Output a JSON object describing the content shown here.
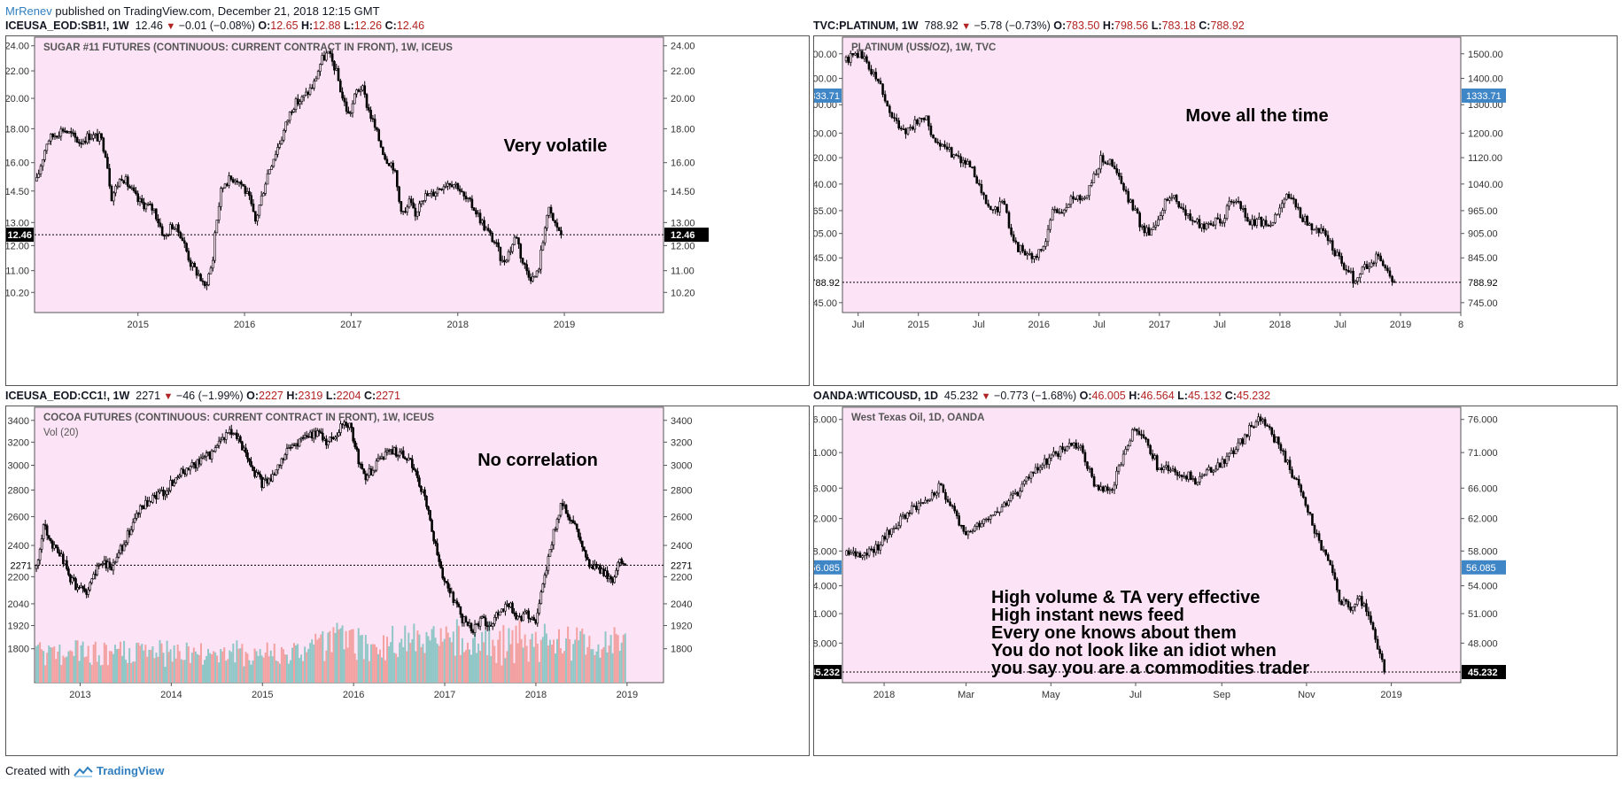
{
  "header": {
    "author": "MrRenev",
    "published_text": "published on TradingView.com, December 21, 2018 12:15 GMT"
  },
  "footer": {
    "created_with": "Created with",
    "brand": "TradingView"
  },
  "colors": {
    "plot_bg": "#fce4f6",
    "badge_blue": "#3f86c6",
    "badge_black": "#000000",
    "vol_up": "#8fc6c6",
    "vol_down": "#f2a0a0",
    "down_red": "#b22222"
  },
  "charts": [
    {
      "symbol": "ICEUSA_EOD:SB1!, 1W",
      "price": "12.46",
      "change": "−0.01 (−0.08%)",
      "o": "12.65",
      "h": "12.88",
      "l": "12.26",
      "c": "12.46",
      "inner_title": "SUGAR #11 FUTURES (CONTINUOUS: CURRENT CONTRACT IN FRONT), 1W, ICEUS",
      "annotation": [
        "Very volatile"
      ],
      "last_label": "12.46",
      "badge_style": "black",
      "left_axis": true
    },
    {
      "symbol": "TVC:PLATINUM, 1W",
      "price": "788.92",
      "change": "−5.78 (−0.73%)",
      "o": "783.50",
      "h": "798.56",
      "l": "783.18",
      "c": "788.92",
      "inner_title": "PLATINUM (US$/OZ), 1W, TVC",
      "annotation": [
        "Move all the time"
      ],
      "last_label": "788.92",
      "ref_label": "1333.71",
      "badge_style": "plain",
      "left_axis": true
    },
    {
      "symbol": "ICEUSA_EOD:CC1!, 1W",
      "price": "2271",
      "change": "−46 (−1.99%)",
      "o": "2227",
      "h": "2319",
      "l": "2204",
      "c": "2271",
      "inner_title": "COCOA FUTURES (CONTINUOUS: CURRENT CONTRACT IN FRONT), 1W, ICEUS",
      "sub_title": "Vol (20)",
      "annotation": [
        "No correlation"
      ],
      "last_label": "2271",
      "badge_style": "plain",
      "left_axis": true
    },
    {
      "symbol": "OANDA:WTICOUSD, 1D",
      "price": "45.232",
      "change": "−0.773 (−1.68%)",
      "o": "46.005",
      "h": "46.564",
      "l": "45.132",
      "c": "45.232",
      "inner_title": "West Texas Oil, 1D, OANDA",
      "annotation": [
        "High volume & TA very effective",
        "High instant news feed",
        "Every one knows about them",
        "You do not look like an idiot when",
        "you say you are a commodities trader"
      ],
      "last_label": "45.232",
      "ref_label": "56.085",
      "badge_style": "black",
      "left_axis": true
    }
  ],
  "chart_data": [
    {
      "type": "candlestick",
      "title": "SUGAR #11 FUTURES (CONTINUOUS: CURRENT CONTRACT IN FRONT), 1W, ICEUS",
      "x_ticks": [
        "2015",
        "2016",
        "2017",
        "2018",
        "2019"
      ],
      "x_tick_pos": [
        2015.0,
        2016.0,
        2017.0,
        2018.0,
        2019.0
      ],
      "x_range": [
        2014.03,
        2019.93
      ],
      "y_ticks": [
        "24.00",
        "22.00",
        "20.00",
        "18.00",
        "16.00",
        "14.50",
        "13.00",
        "12.00",
        "11.00",
        "10.20"
      ],
      "y_range": [
        9.6,
        24.5
      ],
      "y_scale": "log",
      "last_value": 12.46,
      "path": [
        [
          2014.05,
          15.0
        ],
        [
          2014.15,
          17.3
        ],
        [
          2014.3,
          18.0
        ],
        [
          2014.45,
          17.2
        ],
        [
          2014.55,
          17.6
        ],
        [
          2014.65,
          17.4
        ],
        [
          2014.7,
          16.5
        ],
        [
          2014.75,
          14.2
        ],
        [
          2014.85,
          15.3
        ],
        [
          2015.0,
          14.0
        ],
        [
          2015.15,
          13.6
        ],
        [
          2015.25,
          12.3
        ],
        [
          2015.32,
          12.9
        ],
        [
          2015.4,
          12.5
        ],
        [
          2015.5,
          11.2
        ],
        [
          2015.58,
          10.8
        ],
        [
          2015.62,
          10.3
        ],
        [
          2015.7,
          11.3
        ],
        [
          2015.72,
          12.5
        ],
        [
          2015.78,
          14.5
        ],
        [
          2015.82,
          15.0
        ],
        [
          2015.92,
          15.2
        ],
        [
          2015.98,
          14.8
        ],
        [
          2016.05,
          14.0
        ],
        [
          2016.1,
          13.0
        ],
        [
          2016.15,
          14.0
        ],
        [
          2016.22,
          15.5
        ],
        [
          2016.35,
          17.5
        ],
        [
          2016.45,
          19.5
        ],
        [
          2016.55,
          20.0
        ],
        [
          2016.65,
          21.0
        ],
        [
          2016.72,
          22.8
        ],
        [
          2016.78,
          23.4
        ],
        [
          2016.85,
          22.2
        ],
        [
          2016.92,
          20.0
        ],
        [
          2016.98,
          18.8
        ],
        [
          2017.05,
          20.5
        ],
        [
          2017.1,
          20.8
        ],
        [
          2017.15,
          19.5
        ],
        [
          2017.25,
          17.5
        ],
        [
          2017.32,
          16.3
        ],
        [
          2017.4,
          15.8
        ],
        [
          2017.45,
          14.0
        ],
        [
          2017.5,
          13.3
        ],
        [
          2017.55,
          14.0
        ],
        [
          2017.6,
          13.2
        ],
        [
          2017.65,
          14.2
        ],
        [
          2017.75,
          14.3
        ],
        [
          2017.85,
          14.8
        ],
        [
          2017.92,
          15.0
        ],
        [
          2018.0,
          14.8
        ],
        [
          2018.05,
          14.2
        ],
        [
          2018.15,
          13.7
        ],
        [
          2018.25,
          12.8
        ],
        [
          2018.35,
          12.1
        ],
        [
          2018.42,
          11.3
        ],
        [
          2018.5,
          11.9
        ],
        [
          2018.55,
          12.5
        ],
        [
          2018.6,
          11.4
        ],
        [
          2018.65,
          11.0
        ],
        [
          2018.7,
          10.7
        ],
        [
          2018.75,
          10.9
        ],
        [
          2018.8,
          12.2
        ],
        [
          2018.82,
          13.0
        ],
        [
          2018.85,
          13.6
        ],
        [
          2018.9,
          13.0
        ],
        [
          2018.95,
          12.7
        ],
        [
          2018.97,
          12.46
        ]
      ]
    },
    {
      "type": "candlestick",
      "title": "PLATINUM (US$/OZ), 1W, TVC",
      "x_ticks": [
        "Jul",
        "2015",
        "Jul",
        "2016",
        "Jul",
        "2017",
        "Jul",
        "2018",
        "Jul",
        "2019",
        "8"
      ],
      "x_tick_pos": [
        2014.5,
        2015.0,
        2015.5,
        2016.0,
        2016.5,
        2017.0,
        2017.5,
        2018.0,
        2018.5,
        2019.0,
        2019.5
      ],
      "x_range": [
        2014.37,
        2019.5
      ],
      "y_ticks": [
        "1500.00",
        "1400.00",
        "1300.00",
        "1200.00",
        "1120.00",
        "1040.00",
        "965.00",
        "905.00",
        "845.00",
        "745.00"
      ],
      "y_range": [
        730,
        1560
      ],
      "y_scale": "log",
      "last_value": 788.92,
      "ref_value": 1333.71,
      "path": [
        [
          2014.4,
          1470
        ],
        [
          2014.48,
          1510
        ],
        [
          2014.55,
          1480
        ],
        [
          2014.62,
          1420
        ],
        [
          2014.7,
          1360
        ],
        [
          2014.75,
          1280
        ],
        [
          2014.82,
          1230
        ],
        [
          2014.9,
          1210
        ],
        [
          2014.97,
          1230
        ],
        [
          2015.05,
          1260
        ],
        [
          2015.1,
          1210
        ],
        [
          2015.18,
          1150
        ],
        [
          2015.25,
          1140
        ],
        [
          2015.32,
          1130
        ],
        [
          2015.4,
          1100
        ],
        [
          2015.48,
          1060
        ],
        [
          2015.55,
          990
        ],
        [
          2015.62,
          960
        ],
        [
          2015.7,
          990
        ],
        [
          2015.75,
          930
        ],
        [
          2015.82,
          870
        ],
        [
          2015.9,
          860
        ],
        [
          2015.97,
          840
        ],
        [
          2016.05,
          880
        ],
        [
          2016.12,
          970
        ],
        [
          2016.2,
          960
        ],
        [
          2016.3,
          1010
        ],
        [
          2016.38,
          1000
        ],
        [
          2016.45,
          1060
        ],
        [
          2016.52,
          1120
        ],
        [
          2016.58,
          1110
        ],
        [
          2016.65,
          1070
        ],
        [
          2016.72,
          1010
        ],
        [
          2016.8,
          960
        ],
        [
          2016.85,
          920
        ],
        [
          2016.92,
          910
        ],
        [
          2016.98,
          940
        ],
        [
          2017.05,
          990
        ],
        [
          2017.12,
          1010
        ],
        [
          2017.2,
          960
        ],
        [
          2017.28,
          940
        ],
        [
          2017.35,
          920
        ],
        [
          2017.42,
          940
        ],
        [
          2017.5,
          930
        ],
        [
          2017.58,
          980
        ],
        [
          2017.62,
          990
        ],
        [
          2017.7,
          960
        ],
        [
          2017.75,
          930
        ],
        [
          2017.82,
          940
        ],
        [
          2017.9,
          920
        ],
        [
          2017.97,
          950
        ],
        [
          2018.03,
          1010
        ],
        [
          2018.08,
          1000
        ],
        [
          2018.15,
          970
        ],
        [
          2018.22,
          930
        ],
        [
          2018.3,
          920
        ],
        [
          2018.38,
          900
        ],
        [
          2018.45,
          860
        ],
        [
          2018.52,
          830
        ],
        [
          2018.58,
          810
        ],
        [
          2018.62,
          790
        ],
        [
          2018.68,
          820
        ],
        [
          2018.75,
          830
        ],
        [
          2018.8,
          850
        ],
        [
          2018.85,
          840
        ],
        [
          2018.9,
          800
        ],
        [
          2018.95,
          788.92
        ]
      ]
    },
    {
      "type": "candlestick",
      "title": "COCOA FUTURES (CONTINUOUS: CURRENT CONTRACT IN FRONT), 1W, ICEUS",
      "subtitle": "Vol (20)",
      "x_ticks": [
        "2013",
        "2014",
        "2015",
        "2016",
        "2017",
        "2018",
        "2019"
      ],
      "x_tick_pos": [
        2013.0,
        2014.0,
        2015.0,
        2016.0,
        2017.0,
        2018.0,
        2019.0
      ],
      "x_range": [
        2012.5,
        2019.4
      ],
      "y_ticks": [
        "3400",
        "3200",
        "3000",
        "2800",
        "2600",
        "2400",
        "2200",
        "2040",
        "1920",
        "1800"
      ],
      "y_range": [
        1650,
        3500
      ],
      "y_scale": "log",
      "last_value": 2271,
      "path": [
        [
          2012.52,
          2250
        ],
        [
          2012.6,
          2550
        ],
        [
          2012.7,
          2400
        ],
        [
          2012.8,
          2330
        ],
        [
          2012.88,
          2200
        ],
        [
          2012.95,
          2150
        ],
        [
          2013.05,
          2100
        ],
        [
          2013.15,
          2200
        ],
        [
          2013.25,
          2300
        ],
        [
          2013.35,
          2250
        ],
        [
          2013.45,
          2380
        ],
        [
          2013.55,
          2500
        ],
        [
          2013.65,
          2650
        ],
        [
          2013.75,
          2700
        ],
        [
          2013.85,
          2760
        ],
        [
          2013.95,
          2800
        ],
        [
          2014.05,
          2900
        ],
        [
          2014.15,
          2950
        ],
        [
          2014.25,
          3000
        ],
        [
          2014.35,
          3050
        ],
        [
          2014.45,
          3100
        ],
        [
          2014.55,
          3200
        ],
        [
          2014.62,
          3300
        ],
        [
          2014.7,
          3250
        ],
        [
          2014.8,
          3150
        ],
        [
          2014.9,
          2950
        ],
        [
          2015.0,
          2850
        ],
        [
          2015.1,
          2900
        ],
        [
          2015.2,
          3050
        ],
        [
          2015.3,
          3150
        ],
        [
          2015.4,
          3200
        ],
        [
          2015.5,
          3250
        ],
        [
          2015.6,
          3300
        ],
        [
          2015.7,
          3200
        ],
        [
          2015.8,
          3250
        ],
        [
          2015.9,
          3400
        ],
        [
          2015.98,
          3300
        ],
        [
          2016.05,
          3050
        ],
        [
          2016.12,
          2900
        ],
        [
          2016.2,
          2950
        ],
        [
          2016.3,
          3050
        ],
        [
          2016.4,
          3150
        ],
        [
          2016.5,
          3100
        ],
        [
          2016.6,
          3050
        ],
        [
          2016.7,
          2900
        ],
        [
          2016.8,
          2700
        ],
        [
          2016.88,
          2450
        ],
        [
          2016.95,
          2250
        ],
        [
          2017.05,
          2100
        ],
        [
          2017.12,
          2050
        ],
        [
          2017.2,
          1950
        ],
        [
          2017.3,
          1900
        ],
        [
          2017.4,
          1950
        ],
        [
          2017.5,
          1900
        ],
        [
          2017.6,
          2000
        ],
        [
          2017.7,
          2050
        ],
        [
          2017.8,
          1950
        ],
        [
          2017.9,
          1980
        ],
        [
          2018.0,
          1950
        ],
        [
          2018.1,
          2200
        ],
        [
          2018.2,
          2500
        ],
        [
          2018.28,
          2700
        ],
        [
          2018.35,
          2600
        ],
        [
          2018.45,
          2500
        ],
        [
          2018.55,
          2300
        ],
        [
          2018.62,
          2250
        ],
        [
          2018.7,
          2250
        ],
        [
          2018.78,
          2200
        ],
        [
          2018.85,
          2150
        ],
        [
          2018.92,
          2300
        ],
        [
          2018.98,
          2271
        ]
      ]
    },
    {
      "type": "candlestick",
      "title": "West Texas Oil, 1D, OANDA",
      "x_ticks": [
        "2018",
        "Mar",
        "May",
        "Jul",
        "Sep",
        "Nov",
        "2019"
      ],
      "x_tick_pos": [
        0,
        59,
        120,
        181,
        243,
        304,
        365
      ],
      "x_range": [
        -30,
        415
      ],
      "y_ticks": [
        "76.000",
        "71.000",
        "66.000",
        "62.000",
        "58.000",
        "54.000",
        "51.000",
        "48.000"
      ],
      "y_range": [
        44.5,
        77.5
      ],
      "y_scale": "log",
      "last_value": 45.232,
      "ref_value": 56.085,
      "path": [
        [
          -27,
          57.5
        ],
        [
          -15,
          57.8
        ],
        [
          -5,
          58.5
        ],
        [
          5,
          60.5
        ],
        [
          15,
          62.5
        ],
        [
          25,
          64.0
        ],
        [
          35,
          65.0
        ],
        [
          40,
          66.2
        ],
        [
          50,
          63.5
        ],
        [
          58,
          59.5
        ],
        [
          65,
          61.0
        ],
        [
          75,
          62.5
        ],
        [
          85,
          63.5
        ],
        [
          95,
          65.0
        ],
        [
          105,
          68.0
        ],
        [
          115,
          69.5
        ],
        [
          125,
          71.0
        ],
        [
          135,
          72.5
        ],
        [
          142,
          71.5
        ],
        [
          150,
          67.0
        ],
        [
          158,
          65.5
        ],
        [
          165,
          66.5
        ],
        [
          172,
          70.0
        ],
        [
          180,
          74.5
        ],
        [
          190,
          72.0
        ],
        [
          198,
          68.5
        ],
        [
          205,
          69.0
        ],
        [
          215,
          68.0
        ],
        [
          225,
          67.0
        ],
        [
          235,
          68.5
        ],
        [
          245,
          70.0
        ],
        [
          255,
          72.0
        ],
        [
          265,
          75.0
        ],
        [
          270,
          76.5
        ],
        [
          275,
          75.5
        ],
        [
          280,
          73.5
        ],
        [
          288,
          70.5
        ],
        [
          295,
          67.5
        ],
        [
          300,
          65.5
        ],
        [
          305,
          63.0
        ],
        [
          312,
          59.5
        ],
        [
          320,
          56.5
        ],
        [
          328,
          52.5
        ],
        [
          335,
          51.5
        ],
        [
          343,
          52.5
        ],
        [
          350,
          50.0
        ],
        [
          355,
          47.5
        ],
        [
          360,
          45.232
        ]
      ]
    }
  ]
}
